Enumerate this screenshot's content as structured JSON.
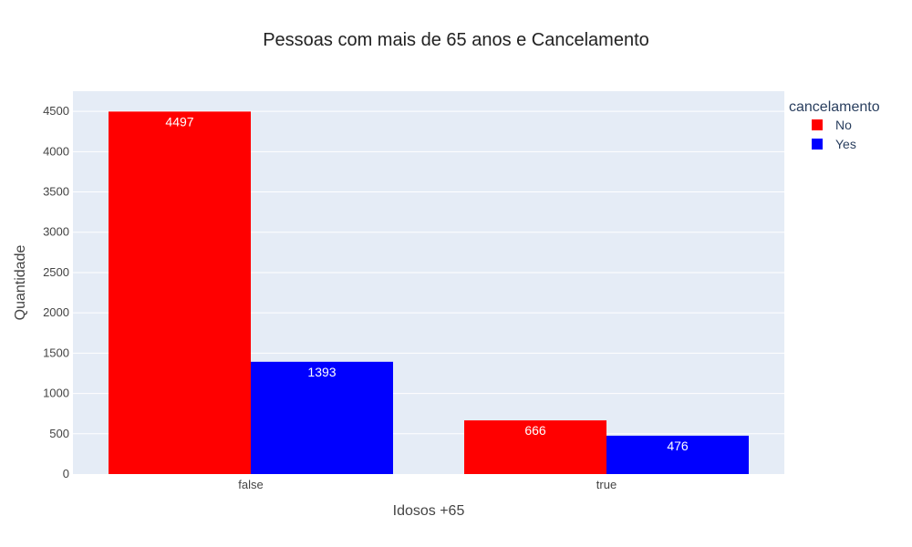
{
  "chart_data": {
    "type": "bar",
    "title": "Pessoas com mais de 65 anos e Cancelamento",
    "xlabel": "Idosos +65",
    "ylabel": "Quantidade",
    "categories": [
      "false",
      "true"
    ],
    "series": [
      {
        "name": "No",
        "values": [
          4497,
          666
        ],
        "color": "#ff0000"
      },
      {
        "name": "Yes",
        "values": [
          1393,
          476
        ],
        "color": "#0000ff"
      }
    ],
    "ylim": [
      0,
      4750
    ],
    "yticks": [
      0,
      500,
      1000,
      1500,
      2000,
      2500,
      3000,
      3500,
      4000,
      4500
    ],
    "legend": {
      "title": "cancelamento",
      "placement": "top-right"
    },
    "grid": true,
    "plot_background": "#e5ecf6"
  }
}
